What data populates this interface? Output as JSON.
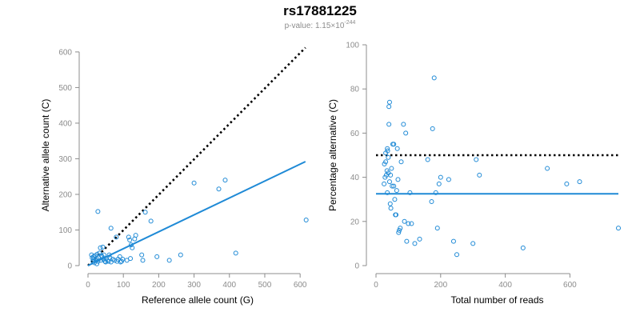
{
  "header": {
    "title": "rs17881225",
    "pvalue_prefix": "p-value: 1.15×10",
    "pvalue_exponent": "-244"
  },
  "chart_data": [
    {
      "type": "scatter",
      "xlabel": "Reference allele count (G)",
      "ylabel": "Alternative allele count (C)",
      "xlim": [
        0,
        620
      ],
      "ylim": [
        0,
        620
      ],
      "xticks": [
        0,
        100,
        200,
        300,
        400,
        500,
        600
      ],
      "yticks": [
        0,
        100,
        200,
        300,
        400,
        500,
        600
      ],
      "point_color": "#1f8ad6",
      "points": [
        [
          10,
          30
        ],
        [
          12,
          22
        ],
        [
          14,
          12
        ],
        [
          15,
          25
        ],
        [
          16,
          18
        ],
        [
          18,
          8
        ],
        [
          20,
          28
        ],
        [
          22,
          15
        ],
        [
          24,
          20
        ],
        [
          25,
          5
        ],
        [
          26,
          32
        ],
        [
          28,
          152
        ],
        [
          28,
          12
        ],
        [
          30,
          22
        ],
        [
          32,
          35
        ],
        [
          35,
          50
        ],
        [
          36,
          15
        ],
        [
          38,
          28
        ],
        [
          40,
          25
        ],
        [
          42,
          52
        ],
        [
          44,
          18
        ],
        [
          45,
          30
        ],
        [
          48,
          12
        ],
        [
          50,
          10
        ],
        [
          52,
          20
        ],
        [
          55,
          15
        ],
        [
          58,
          12
        ],
        [
          60,
          30
        ],
        [
          62,
          22
        ],
        [
          65,
          105
        ],
        [
          65,
          10
        ],
        [
          70,
          18
        ],
        [
          75,
          15
        ],
        [
          80,
          80
        ],
        [
          82,
          12
        ],
        [
          85,
          18
        ],
        [
          90,
          25
        ],
        [
          92,
          10
        ],
        [
          95,
          12
        ],
        [
          98,
          18
        ],
        [
          110,
          15
        ],
        [
          115,
          80
        ],
        [
          118,
          72
        ],
        [
          120,
          20
        ],
        [
          122,
          58
        ],
        [
          125,
          50
        ],
        [
          132,
          75
        ],
        [
          135,
          85
        ],
        [
          152,
          30
        ],
        [
          155,
          15
        ],
        [
          162,
          150
        ],
        [
          178,
          125
        ],
        [
          195,
          25
        ],
        [
          230,
          15
        ],
        [
          262,
          30
        ],
        [
          300,
          232
        ],
        [
          370,
          215
        ],
        [
          388,
          240
        ],
        [
          418,
          35
        ],
        [
          617,
          128
        ]
      ],
      "reference_line": {
        "style": "dotted",
        "color": "#000000",
        "from": [
          0,
          0
        ],
        "to": [
          615,
          612
        ]
      },
      "fit_line": {
        "color": "#1f8ad6",
        "from": [
          0,
          0
        ],
        "to": [
          615,
          292
        ]
      }
    },
    {
      "type": "scatter",
      "xlabel": "Total number of reads",
      "ylabel": "Percentage alternative (C)",
      "xlim": [
        0,
        750
      ],
      "ylim": [
        0,
        100
      ],
      "xticks": [
        0,
        200,
        400,
        600
      ],
      "yticks": [
        0,
        20,
        40,
        60,
        80,
        100
      ],
      "point_color": "#1f8ad6",
      "points": [
        [
          25,
          37
        ],
        [
          26,
          46
        ],
        [
          28,
          40
        ],
        [
          30,
          47
        ],
        [
          30,
          51
        ],
        [
          32,
          41
        ],
        [
          34,
          43
        ],
        [
          35,
          53
        ],
        [
          35,
          33
        ],
        [
          36,
          52
        ],
        [
          38,
          49
        ],
        [
          38,
          42
        ],
        [
          40,
          64
        ],
        [
          40,
          72
        ],
        [
          42,
          74
        ],
        [
          42,
          38
        ],
        [
          44,
          28
        ],
        [
          45,
          41
        ],
        [
          46,
          26
        ],
        [
          48,
          44
        ],
        [
          50,
          36
        ],
        [
          52,
          55
        ],
        [
          55,
          55
        ],
        [
          55,
          36
        ],
        [
          58,
          30
        ],
        [
          60,
          23
        ],
        [
          62,
          23
        ],
        [
          64,
          34
        ],
        [
          66,
          53
        ],
        [
          68,
          39
        ],
        [
          70,
          15
        ],
        [
          72,
          16
        ],
        [
          75,
          17
        ],
        [
          78,
          47
        ],
        [
          85,
          64
        ],
        [
          88,
          20
        ],
        [
          92,
          60
        ],
        [
          95,
          11
        ],
        [
          100,
          19
        ],
        [
          105,
          33
        ],
        [
          110,
          19
        ],
        [
          120,
          10
        ],
        [
          135,
          12
        ],
        [
          160,
          48
        ],
        [
          172,
          29
        ],
        [
          175,
          62
        ],
        [
          180,
          85
        ],
        [
          185,
          33
        ],
        [
          190,
          17
        ],
        [
          195,
          37
        ],
        [
          200,
          40
        ],
        [
          225,
          39
        ],
        [
          240,
          11
        ],
        [
          250,
          5
        ],
        [
          300,
          10
        ],
        [
          310,
          48
        ],
        [
          320,
          41
        ],
        [
          455,
          8
        ],
        [
          530,
          44
        ],
        [
          590,
          37
        ],
        [
          630,
          38
        ],
        [
          750,
          17
        ]
      ],
      "reference_line": {
        "style": "dotted",
        "color": "#000000",
        "y": 50,
        "x_from": 0,
        "x_to": 750
      },
      "mean_line": {
        "color": "#1f8ad6",
        "y": 32.5,
        "x_from": 0,
        "x_to": 750
      }
    }
  ]
}
